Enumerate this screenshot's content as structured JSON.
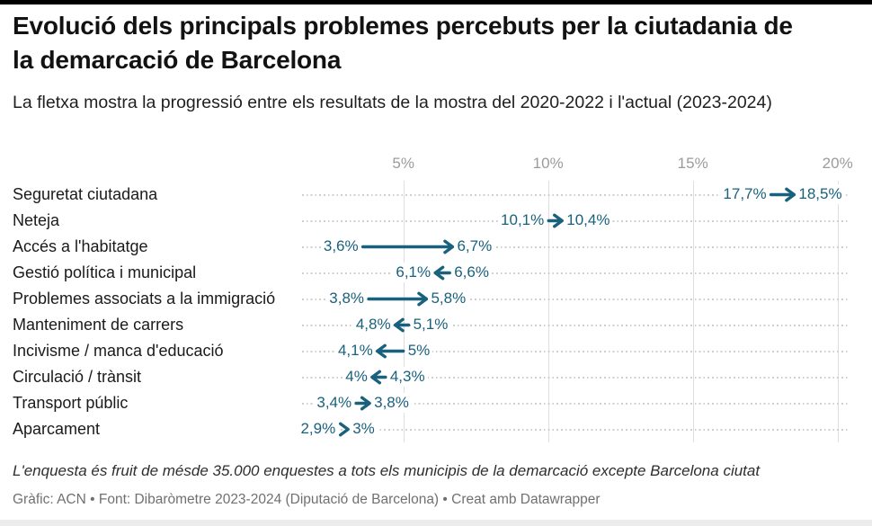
{
  "page": {
    "title": "Evolució dels principals problemes percebuts per la ciutadania de la demarcació de Barcelona",
    "subtitle": "La fletxa mostra la progressió entre els resultats de la mostra del 2020-2022 i l'actual (2023-2024)",
    "note": "L'enquesta és fruit de mésde 35.000 enquestes a tots els municipis de la demarcació excepte Barcelona ciutat",
    "byline": "Gràfic: ACN • Font: Dibaròmetre 2023-2024 (Diputació de Barcelona) • Creat amb Datawrapper"
  },
  "colors": {
    "teal": "#19617d",
    "grid": "#dedede",
    "dotted": "#cfcfcf",
    "tick": "#9b9b9b",
    "title": "#121212",
    "subtitle": "#1f1f1f",
    "rowlabel": "#1a1a1a",
    "note": "#2e2e2e",
    "byline": "#707070",
    "topbar": "#000000",
    "bottombar": "#ececec"
  },
  "chart_data": {
    "type": "arrow-range",
    "unit": "%",
    "series_labels": {
      "from": "2020-2022",
      "to": "2023-2024"
    },
    "x_axis": {
      "min": 1.5,
      "max": 20.4,
      "grid": true,
      "ticks": [
        {
          "value": 5,
          "label": "5%"
        },
        {
          "value": 10,
          "label": "10%"
        },
        {
          "value": 15,
          "label": "15%"
        },
        {
          "value": 20,
          "label": "20%"
        }
      ]
    },
    "rows": [
      {
        "label": "Seguretat ciutadana",
        "from": 17.7,
        "to": 18.5,
        "from_label": "17,7%",
        "to_label": "18,5%"
      },
      {
        "label": "Neteja",
        "from": 10.1,
        "to": 10.4,
        "from_label": "10,1%",
        "to_label": "10,4%"
      },
      {
        "label": "Accés a l'habitatge",
        "from": 3.6,
        "to": 6.7,
        "from_label": "3,6%",
        "to_label": "6,7%"
      },
      {
        "label": "Gestió política i municipal",
        "from": 6.6,
        "to": 6.1,
        "from_label": "6,6%",
        "to_label": "6,1%"
      },
      {
        "label": "Problemes associats a la immigració",
        "from": 3.8,
        "to": 5.8,
        "from_label": "3,8%",
        "to_label": "5,8%"
      },
      {
        "label": "Manteniment de carrers",
        "from": 5.1,
        "to": 4.8,
        "from_label": "5,1%",
        "to_label": "4,8%"
      },
      {
        "label": "Incivisme / manca d'educació",
        "from": 5.0,
        "to": 4.1,
        "from_label": "5%",
        "to_label": "4,1%"
      },
      {
        "label": "Circulació / trànsit",
        "from": 4.3,
        "to": 4.0,
        "from_label": "4,3%",
        "to_label": "4%"
      },
      {
        "label": "Transport públic",
        "from": 3.4,
        "to": 3.8,
        "from_label": "3,4%",
        "to_label": "3,8%"
      },
      {
        "label": "Aparcament",
        "from": 2.9,
        "to": 3.0,
        "from_label": "2,9%",
        "to_label": "3%"
      }
    ]
  }
}
